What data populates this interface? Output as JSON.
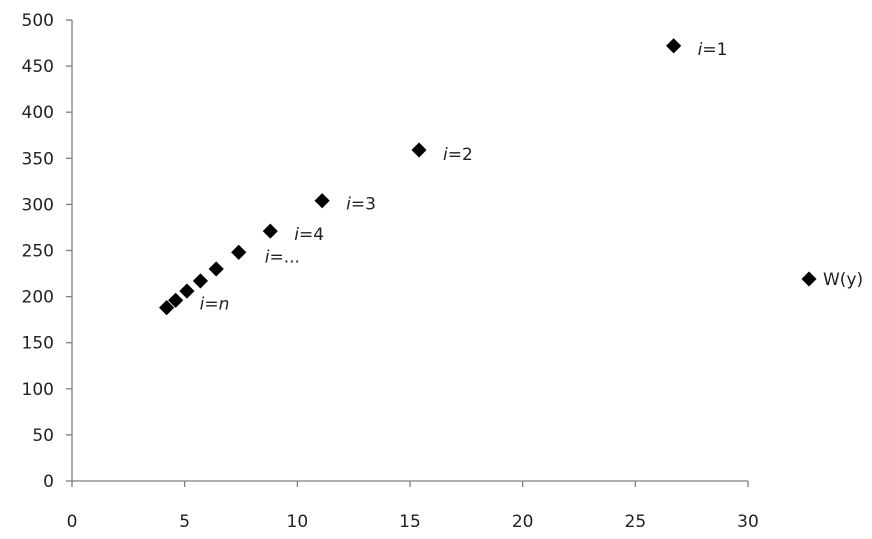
{
  "chart_data": {
    "type": "scatter",
    "title": "",
    "xlabel": "",
    "ylabel": "",
    "xlim": [
      0,
      30
    ],
    "ylim": [
      0,
      500
    ],
    "xticks": [
      0,
      5,
      10,
      15,
      20,
      25,
      30
    ],
    "yticks": [
      0,
      50,
      100,
      150,
      200,
      250,
      300,
      350,
      400,
      450,
      500
    ],
    "grid": false,
    "legend": {
      "position": "right",
      "entries": [
        "W(y)"
      ]
    },
    "series": [
      {
        "name": "W(y)",
        "color": "#000000",
        "marker": "diamond",
        "points": [
          {
            "x": 26.7,
            "y": 472
          },
          {
            "x": 15.4,
            "y": 359
          },
          {
            "x": 11.1,
            "y": 304
          },
          {
            "x": 8.8,
            "y": 271
          },
          {
            "x": 7.4,
            "y": 248
          },
          {
            "x": 6.4,
            "y": 230
          },
          {
            "x": 5.7,
            "y": 217
          },
          {
            "x": 5.1,
            "y": 206
          },
          {
            "x": 4.6,
            "y": 196
          },
          {
            "x": 4.2,
            "y": 188
          }
        ]
      }
    ],
    "annotations": [
      {
        "italic": "i",
        "rest": "=1",
        "x": 26.7,
        "y": 472
      },
      {
        "italic": "i",
        "rest": "=2",
        "x": 15.4,
        "y": 359
      },
      {
        "italic": "i",
        "rest": "=3",
        "x": 11.1,
        "y": 304
      },
      {
        "italic": "i",
        "rest": "=4",
        "x": 8.8,
        "y": 271
      },
      {
        "italic": "i",
        "rest": "=...",
        "x": 7.4,
        "y": 248
      },
      {
        "italic": "i=n",
        "rest": "",
        "x": 4.2,
        "y": 188
      }
    ]
  }
}
